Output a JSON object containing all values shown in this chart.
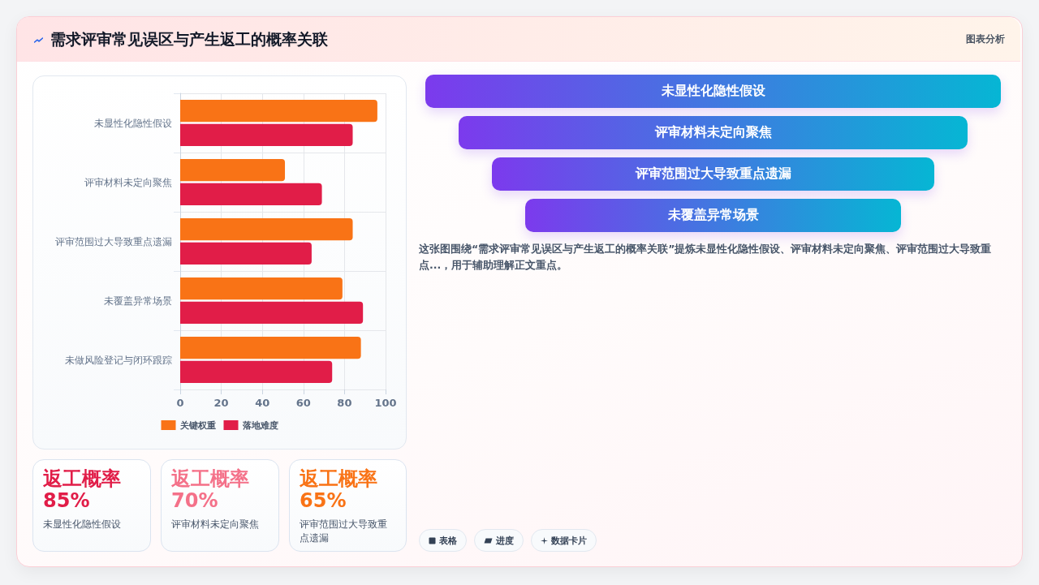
{
  "chart_data": [
    {
      "type": "other",
      "title": "需求评审常见误区与产生返工的概率关联",
      "annotations": [
        "图表分析"
      ]
    },
    {
      "type": "bar",
      "orientation": "horizontal",
      "categories": [
        "未显性化隐性假设",
        "评审材料未定向聚焦",
        "评审范围过大导致重点遗漏",
        "未覆盖异常场景",
        "未做风险登记与闭环跟踪"
      ],
      "series": [
        {
          "name": "关键权重",
          "color": "#f97316",
          "values": [
            96,
            51,
            84,
            79,
            88
          ]
        },
        {
          "name": "落地难度",
          "color": "#e11d48",
          "values": [
            84,
            69,
            64,
            89,
            74
          ]
        }
      ],
      "xlim": [
        0,
        100
      ],
      "xticks": [
        0,
        20,
        40,
        60,
        80,
        100
      ],
      "grid": true,
      "legend": "bottom"
    },
    {
      "type": "other",
      "categories": [
        "未显性化隐性假设",
        "评审材料未定向聚焦",
        "评审范围过大导致重点遗漏",
        "未覆盖异常场景"
      ],
      "annotations": [
        "这张图围绕“需求评审常见误区与产生返工的概率关联”提炼未显性化隐性假设、评审材料未定向聚焦、评审范围过大导致重点...，用于辅助理解正文重点。",
        "表格",
        "进度",
        "数据卡片"
      ]
    },
    {
      "type": "other",
      "title": "返工概率",
      "subtitle": "85%",
      "annotations": [
        "未显性化隐性假设"
      ]
    },
    {
      "type": "other",
      "title": "返工概率",
      "subtitle": "70%",
      "annotations": [
        "评审材料未定向聚焦"
      ]
    },
    {
      "type": "other",
      "title": "返工概率",
      "subtitle": "65%",
      "annotations": [
        "评审范围过大导致重点遗漏"
      ]
    }
  ]
}
